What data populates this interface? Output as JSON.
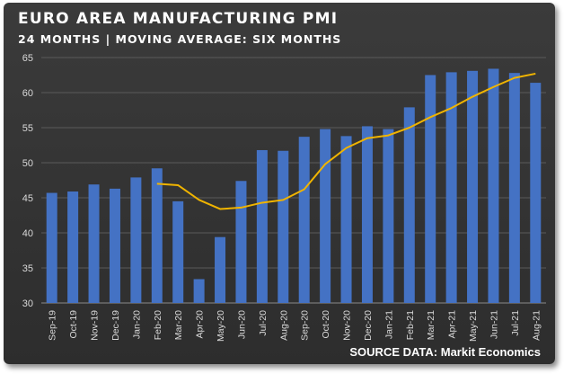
{
  "title": "EURO AREA MANUFACTURING PMI",
  "subtitle": "24 MONTHS | MOVING AVERAGE: SIX MONTHS",
  "source": "SOURCE DATA: Markit Economics",
  "colors": {
    "bar": "#4472c4",
    "line": "#f0b400",
    "grid": "#5a5a5a",
    "background": "#333333"
  },
  "chart_data": {
    "type": "bar",
    "title": "EURO AREA MANUFACTURING PMI",
    "subtitle": "24 MONTHS | MOVING AVERAGE: SIX MONTHS",
    "xlabel": "",
    "ylabel": "",
    "ylim": [
      30,
      65
    ],
    "yticks": [
      30,
      35,
      40,
      45,
      50,
      55,
      60,
      65
    ],
    "grid": true,
    "legend": "none",
    "categories": [
      "Sep-19",
      "Oct-19",
      "Nov-19",
      "Dec-19",
      "Jan-20",
      "Feb-20",
      "Mar-20",
      "Apr-20",
      "May-20",
      "Jun-20",
      "Jul-20",
      "Aug-20",
      "Sep-20",
      "Oct-20",
      "Nov-20",
      "Dec-20",
      "Jan-21",
      "Feb-21",
      "Mar-21",
      "Apr-21",
      "May-21",
      "Jun-21",
      "Jul-21",
      "Aug-21"
    ],
    "series": [
      {
        "type": "bar",
        "values": [
          45.7,
          45.9,
          46.9,
          46.3,
          47.9,
          49.2,
          44.5,
          33.4,
          39.4,
          47.4,
          51.8,
          51.7,
          53.7,
          54.8,
          53.8,
          55.2,
          54.8,
          57.9,
          62.5,
          62.9,
          63.1,
          63.4,
          62.8,
          61.4
        ]
      },
      {
        "type": "line",
        "values": [
          null,
          null,
          null,
          null,
          null,
          47.0,
          46.8,
          44.7,
          43.4,
          43.6,
          44.3,
          44.7,
          46.2,
          49.8,
          52.1,
          53.5,
          53.9,
          55.0,
          56.5,
          57.8,
          59.4,
          60.8,
          62.1,
          62.7
        ]
      }
    ]
  }
}
